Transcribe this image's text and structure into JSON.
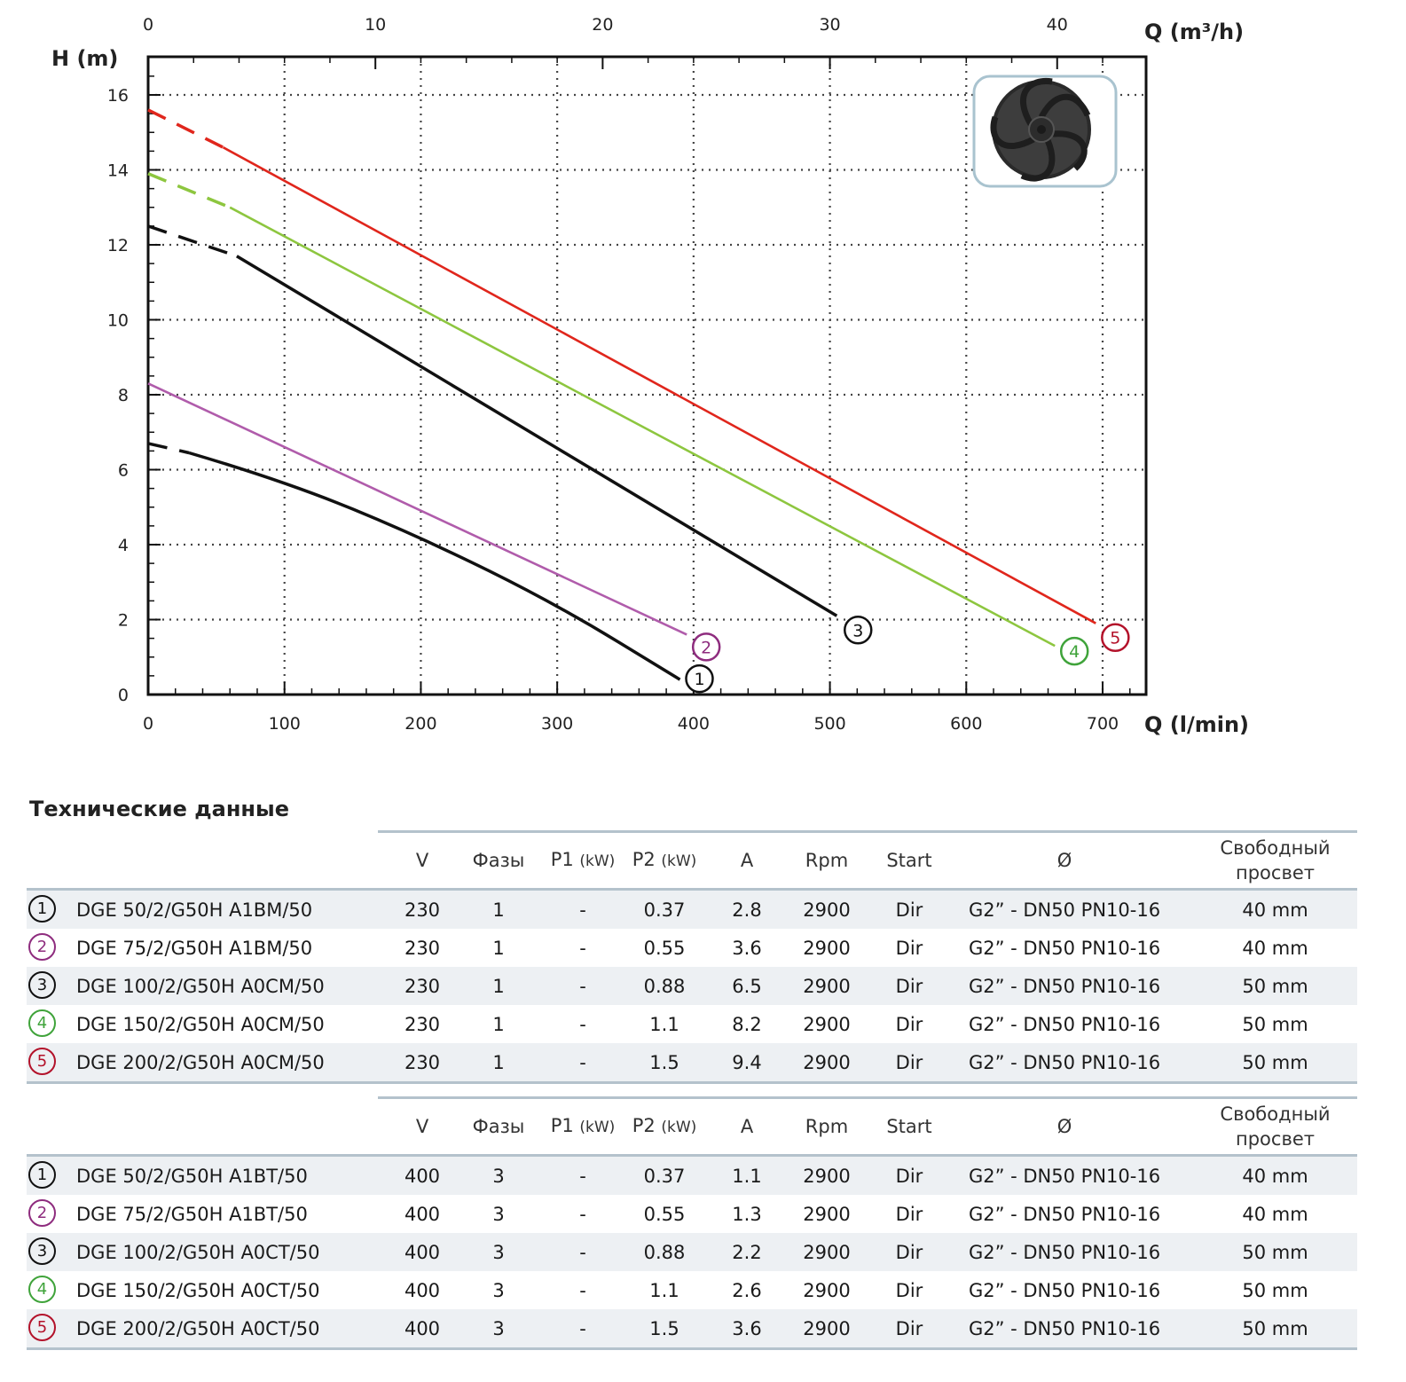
{
  "page": {
    "title": "Технические данные"
  },
  "chart_data": {
    "type": "line",
    "x_unit_bottom": "Q (l/min)",
    "x_unit_top": "Q (m³/h)",
    "y_unit": "H (m)",
    "xlim": [
      0,
      730
    ],
    "ylim": [
      0,
      17
    ],
    "x_ticks": [
      "0",
      "100",
      "200",
      "300",
      "400",
      "500",
      "600",
      "700"
    ],
    "x_ticks_top": [
      "0",
      "10",
      "20",
      "30",
      "40"
    ],
    "y_ticks": [
      "0",
      "2",
      "4",
      "6",
      "8",
      "10",
      "12",
      "14",
      "16"
    ],
    "grid": true,
    "series": [
      {
        "name": "1",
        "color": "#111111",
        "dashed_until": 30,
        "points": [
          [
            0,
            6.7
          ],
          [
            30,
            6.45
          ],
          [
            100,
            5.7
          ],
          [
            200,
            4.2
          ],
          [
            300,
            2.4
          ],
          [
            390,
            0.4
          ]
        ]
      },
      {
        "name": "2",
        "color": "#b05cab",
        "dashed_until": 0,
        "points": [
          [
            0,
            8.3
          ],
          [
            395,
            1.6
          ]
        ]
      },
      {
        "name": "3",
        "color": "#111111",
        "dashed_until": 65,
        "points": [
          [
            0,
            12.5
          ],
          [
            65,
            11.7
          ],
          [
            505,
            2.1
          ]
        ]
      },
      {
        "name": "4",
        "color": "#8dc63f",
        "dashed_until": 60,
        "points": [
          [
            0,
            13.9
          ],
          [
            60,
            13.0
          ],
          [
            665,
            1.3
          ]
        ]
      },
      {
        "name": "5",
        "color": "#e0261c",
        "dashed_until": 55,
        "points": [
          [
            0,
            15.6
          ],
          [
            55,
            14.6
          ],
          [
            695,
            1.9
          ]
        ]
      }
    ],
    "series_labels": [
      "1",
      "2",
      "3",
      "4",
      "5"
    ],
    "inset": "impeller-image"
  },
  "table_header": {
    "v": "V",
    "phases": "Фазы",
    "p1": "P1",
    "p2": "P2",
    "kw": "(kW)",
    "a": "A",
    "rpm": "Rpm",
    "start": "Start",
    "diam": "Ø",
    "free_passage_1": "Свободный",
    "free_passage_2": "просвет"
  },
  "table_1": [
    {
      "num": "1",
      "model": "DGE 50/2/G50H A1BM/50",
      "v": "230",
      "phases": "1",
      "p1": "-",
      "p2": "0.37",
      "a": "2.8",
      "rpm": "2900",
      "start": "Dir",
      "conn": "G2” - DN50 PN10-16",
      "pass": "40 mm"
    },
    {
      "num": "2",
      "model": "DGE 75/2/G50H A1BM/50",
      "v": "230",
      "phases": "1",
      "p1": "-",
      "p2": "0.55",
      "a": "3.6",
      "rpm": "2900",
      "start": "Dir",
      "conn": "G2” - DN50 PN10-16",
      "pass": "40 mm"
    },
    {
      "num": "3",
      "model": "DGE 100/2/G50H A0CM/50",
      "v": "230",
      "phases": "1",
      "p1": "-",
      "p2": "0.88",
      "a": "6.5",
      "rpm": "2900",
      "start": "Dir",
      "conn": "G2” - DN50 PN10-16",
      "pass": "50 mm"
    },
    {
      "num": "4",
      "model": "DGE 150/2/G50H A0CM/50",
      "v": "230",
      "phases": "1",
      "p1": "-",
      "p2": "1.1",
      "a": "8.2",
      "rpm": "2900",
      "start": "Dir",
      "conn": "G2” - DN50 PN10-16",
      "pass": "50 mm"
    },
    {
      "num": "5",
      "model": "DGE 200/2/G50H A0CM/50",
      "v": "230",
      "phases": "1",
      "p1": "-",
      "p2": "1.5",
      "a": "9.4",
      "rpm": "2900",
      "start": "Dir",
      "conn": "G2” - DN50 PN10-16",
      "pass": "50 mm"
    }
  ],
  "table_2": [
    {
      "num": "1",
      "model": "DGE 50/2/G50H A1BT/50",
      "v": "400",
      "phases": "3",
      "p1": "-",
      "p2": "0.37",
      "a": "1.1",
      "rpm": "2900",
      "start": "Dir",
      "conn": "G2” - DN50 PN10-16",
      "pass": "40 mm"
    },
    {
      "num": "2",
      "model": "DGE 75/2/G50H A1BT/50",
      "v": "400",
      "phases": "3",
      "p1": "-",
      "p2": "0.55",
      "a": "1.3",
      "rpm": "2900",
      "start": "Dir",
      "conn": "G2” - DN50 PN10-16",
      "pass": "40 mm"
    },
    {
      "num": "3",
      "model": "DGE 100/2/G50H A0CT/50",
      "v": "400",
      "phases": "3",
      "p1": "-",
      "p2": "0.88",
      "a": "2.2",
      "rpm": "2900",
      "start": "Dir",
      "conn": "G2” - DN50 PN10-16",
      "pass": "50 mm"
    },
    {
      "num": "4",
      "model": "DGE 150/2/G50H A0CT/50",
      "v": "400",
      "phases": "3",
      "p1": "-",
      "p2": "1.1",
      "a": "2.6",
      "rpm": "2900",
      "start": "Dir",
      "conn": "G2” - DN50 PN10-16",
      "pass": "50 mm"
    },
    {
      "num": "5",
      "model": "DGE 200/2/G50H A0CT/50",
      "v": "400",
      "phases": "3",
      "p1": "-",
      "p2": "1.5",
      "a": "3.6",
      "rpm": "2900",
      "start": "Dir",
      "conn": "G2” - DN50 PN10-16",
      "pass": "50 mm"
    }
  ]
}
